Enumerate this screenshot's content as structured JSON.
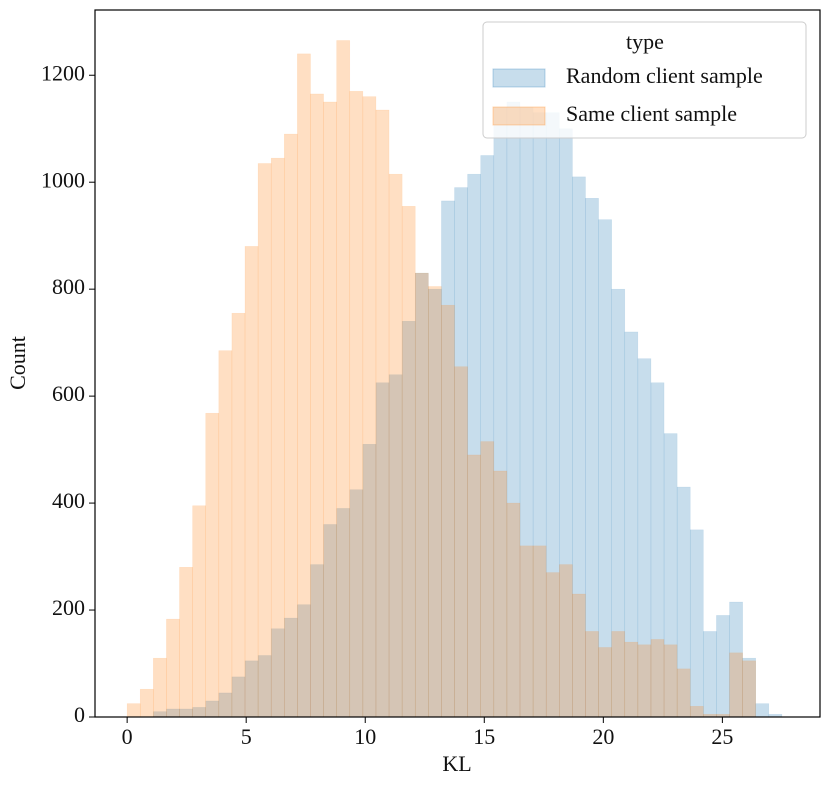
{
  "chart_data": {
    "type": "histogram",
    "xlabel": "KL",
    "ylabel": "Count",
    "legend_title": "type",
    "legend_loc": "upper right",
    "bins": [
      0,
      0.55,
      1.1,
      1.65,
      2.2,
      2.75,
      3.3,
      3.85,
      4.4,
      4.95,
      5.5,
      6.05,
      6.6,
      7.15,
      7.7,
      8.25,
      8.8,
      9.35,
      9.9,
      10.45,
      11,
      11.55,
      12.1,
      12.65,
      13.2,
      13.75,
      14.3,
      14.85,
      15.4,
      15.95,
      16.5,
      17.05,
      17.6,
      18.15,
      18.7,
      19.25,
      19.8,
      20.35,
      20.9,
      21.45,
      22,
      22.55,
      23.1,
      23.65,
      24.2,
      24.75,
      25.3,
      25.85,
      26.4,
      26.95,
      27.5
    ],
    "series": [
      {
        "name": "Random client sample",
        "color": "#1f77b4",
        "values": [
          0,
          0,
          10,
          15,
          15,
          18,
          30,
          45,
          75,
          105,
          115,
          165,
          185,
          210,
          285,
          360,
          390,
          425,
          510,
          625,
          640,
          740,
          830,
          800,
          965,
          990,
          1015,
          1050,
          1140,
          1150,
          1140,
          1130,
          1130,
          1100,
          1010,
          970,
          930,
          800,
          720,
          670,
          625,
          530,
          430,
          350,
          160,
          190,
          215,
          110,
          25,
          5
        ]
      },
      {
        "name": "Same client sample",
        "color": "#ff7f0e",
        "values": [
          25,
          52,
          110,
          183,
          280,
          395,
          568,
          685,
          755,
          880,
          1035,
          1045,
          1090,
          1240,
          1165,
          1150,
          1265,
          1170,
          1160,
          1135,
          1015,
          955,
          830,
          805,
          770,
          655,
          490,
          515,
          460,
          400,
          320,
          320,
          270,
          285,
          230,
          160,
          130,
          160,
          140,
          135,
          145,
          135,
          90,
          20,
          5,
          5,
          120,
          105,
          0,
          0
        ]
      }
    ],
    "xlim": [
      -1.35,
      29.1
    ],
    "ylim": [
      0,
      1322
    ],
    "xticks": [
      0,
      5,
      10,
      15,
      20,
      25
    ],
    "yticks": [
      0,
      200,
      400,
      600,
      800,
      1000,
      1200
    ]
  }
}
